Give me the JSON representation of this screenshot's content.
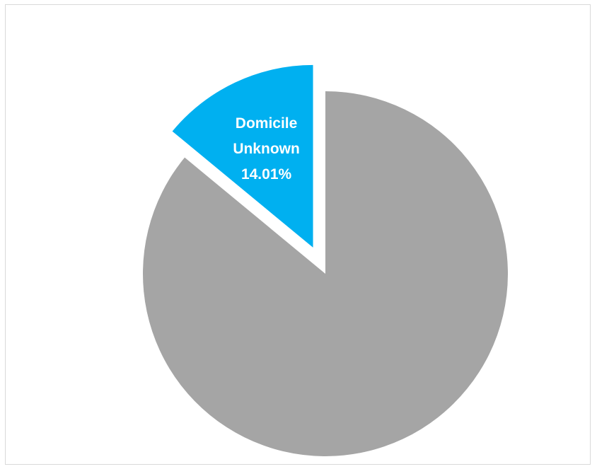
{
  "chart_data": {
    "type": "pie",
    "slices": [
      {
        "label": "",
        "value": 85.99,
        "color": "#a5a5a5",
        "exploded": false
      },
      {
        "label": "Domicile Unknown",
        "value": 14.01,
        "color": "#00b0f0",
        "exploded": true,
        "data_label": [
          "Domicile",
          "Unknown",
          "14.01%"
        ]
      }
    ],
    "legend": "none"
  }
}
